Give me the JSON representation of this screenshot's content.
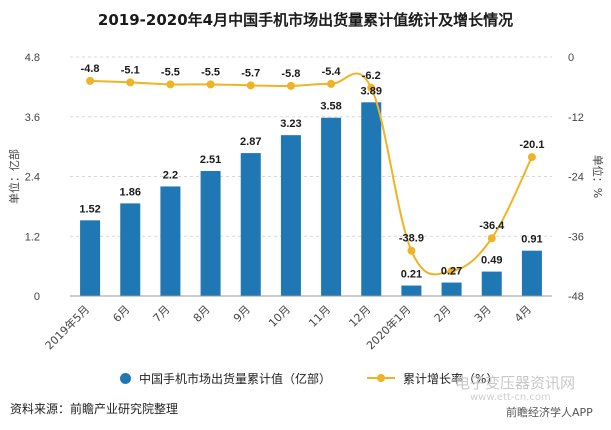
{
  "title": "2019-2020年4月中国手机市场出货量累计值统计及增长情况",
  "source": "资料来源：前瞻产业研究院整理",
  "watermark": {
    "brand_en": "电子变压器资讯网",
    "brand_url": "www.ett-cn.com",
    "brand_app": "前瞻经济学人APP"
  },
  "colors": {
    "bar": "#1f77b4",
    "line": "#f0b326",
    "grid": "#d9d9d9",
    "axis_text": "#444444"
  },
  "chart_data": {
    "type": "bar",
    "categories": [
      "2019年5月",
      "6月",
      "7月",
      "8月",
      "9月",
      "10月",
      "11月",
      "12月",
      "2020年1月",
      "2月",
      "3月",
      "4月"
    ],
    "series": [
      {
        "name": "中国手机市场出货量累计值（亿部）",
        "type": "bar",
        "axis": "left",
        "values": [
          1.52,
          1.86,
          2.2,
          2.51,
          2.87,
          3.23,
          3.58,
          3.89,
          0.21,
          0.27,
          0.49,
          0.91
        ],
        "labels": [
          "1.52",
          "1.86",
          "2.2",
          "2.51",
          "2.87",
          "3.23",
          "3.58",
          "3.89",
          "0.21",
          "0.27",
          "0.49",
          "0.91"
        ]
      },
      {
        "name": "累计增长率（%）",
        "type": "line",
        "axis": "right",
        "values": [
          -4.8,
          -5.1,
          -5.5,
          -5.5,
          -5.7,
          -5.8,
          -5.4,
          -6.2,
          -38.9,
          -43.0,
          -36.4,
          -20.1
        ],
        "labels": [
          "-4.8",
          "-5.1",
          "-5.5",
          "-5.5",
          "-5.7",
          "-5.8",
          "-5.4",
          "-6.2",
          "-38.9",
          "",
          "-36.4",
          "-20.1"
        ]
      }
    ],
    "y_left": {
      "label": "单位：亿部",
      "ticks": [
        "0",
        "1.2",
        "2.4",
        "3.6",
        "4.8"
      ],
      "ylim": [
        0,
        4.8
      ]
    },
    "y_right": {
      "label": "单位：%",
      "ticks": [
        "-48",
        "-36",
        "-24",
        "-12",
        "0"
      ],
      "ylim": [
        -48,
        0
      ]
    },
    "grid": true,
    "legend_position": "bottom"
  }
}
